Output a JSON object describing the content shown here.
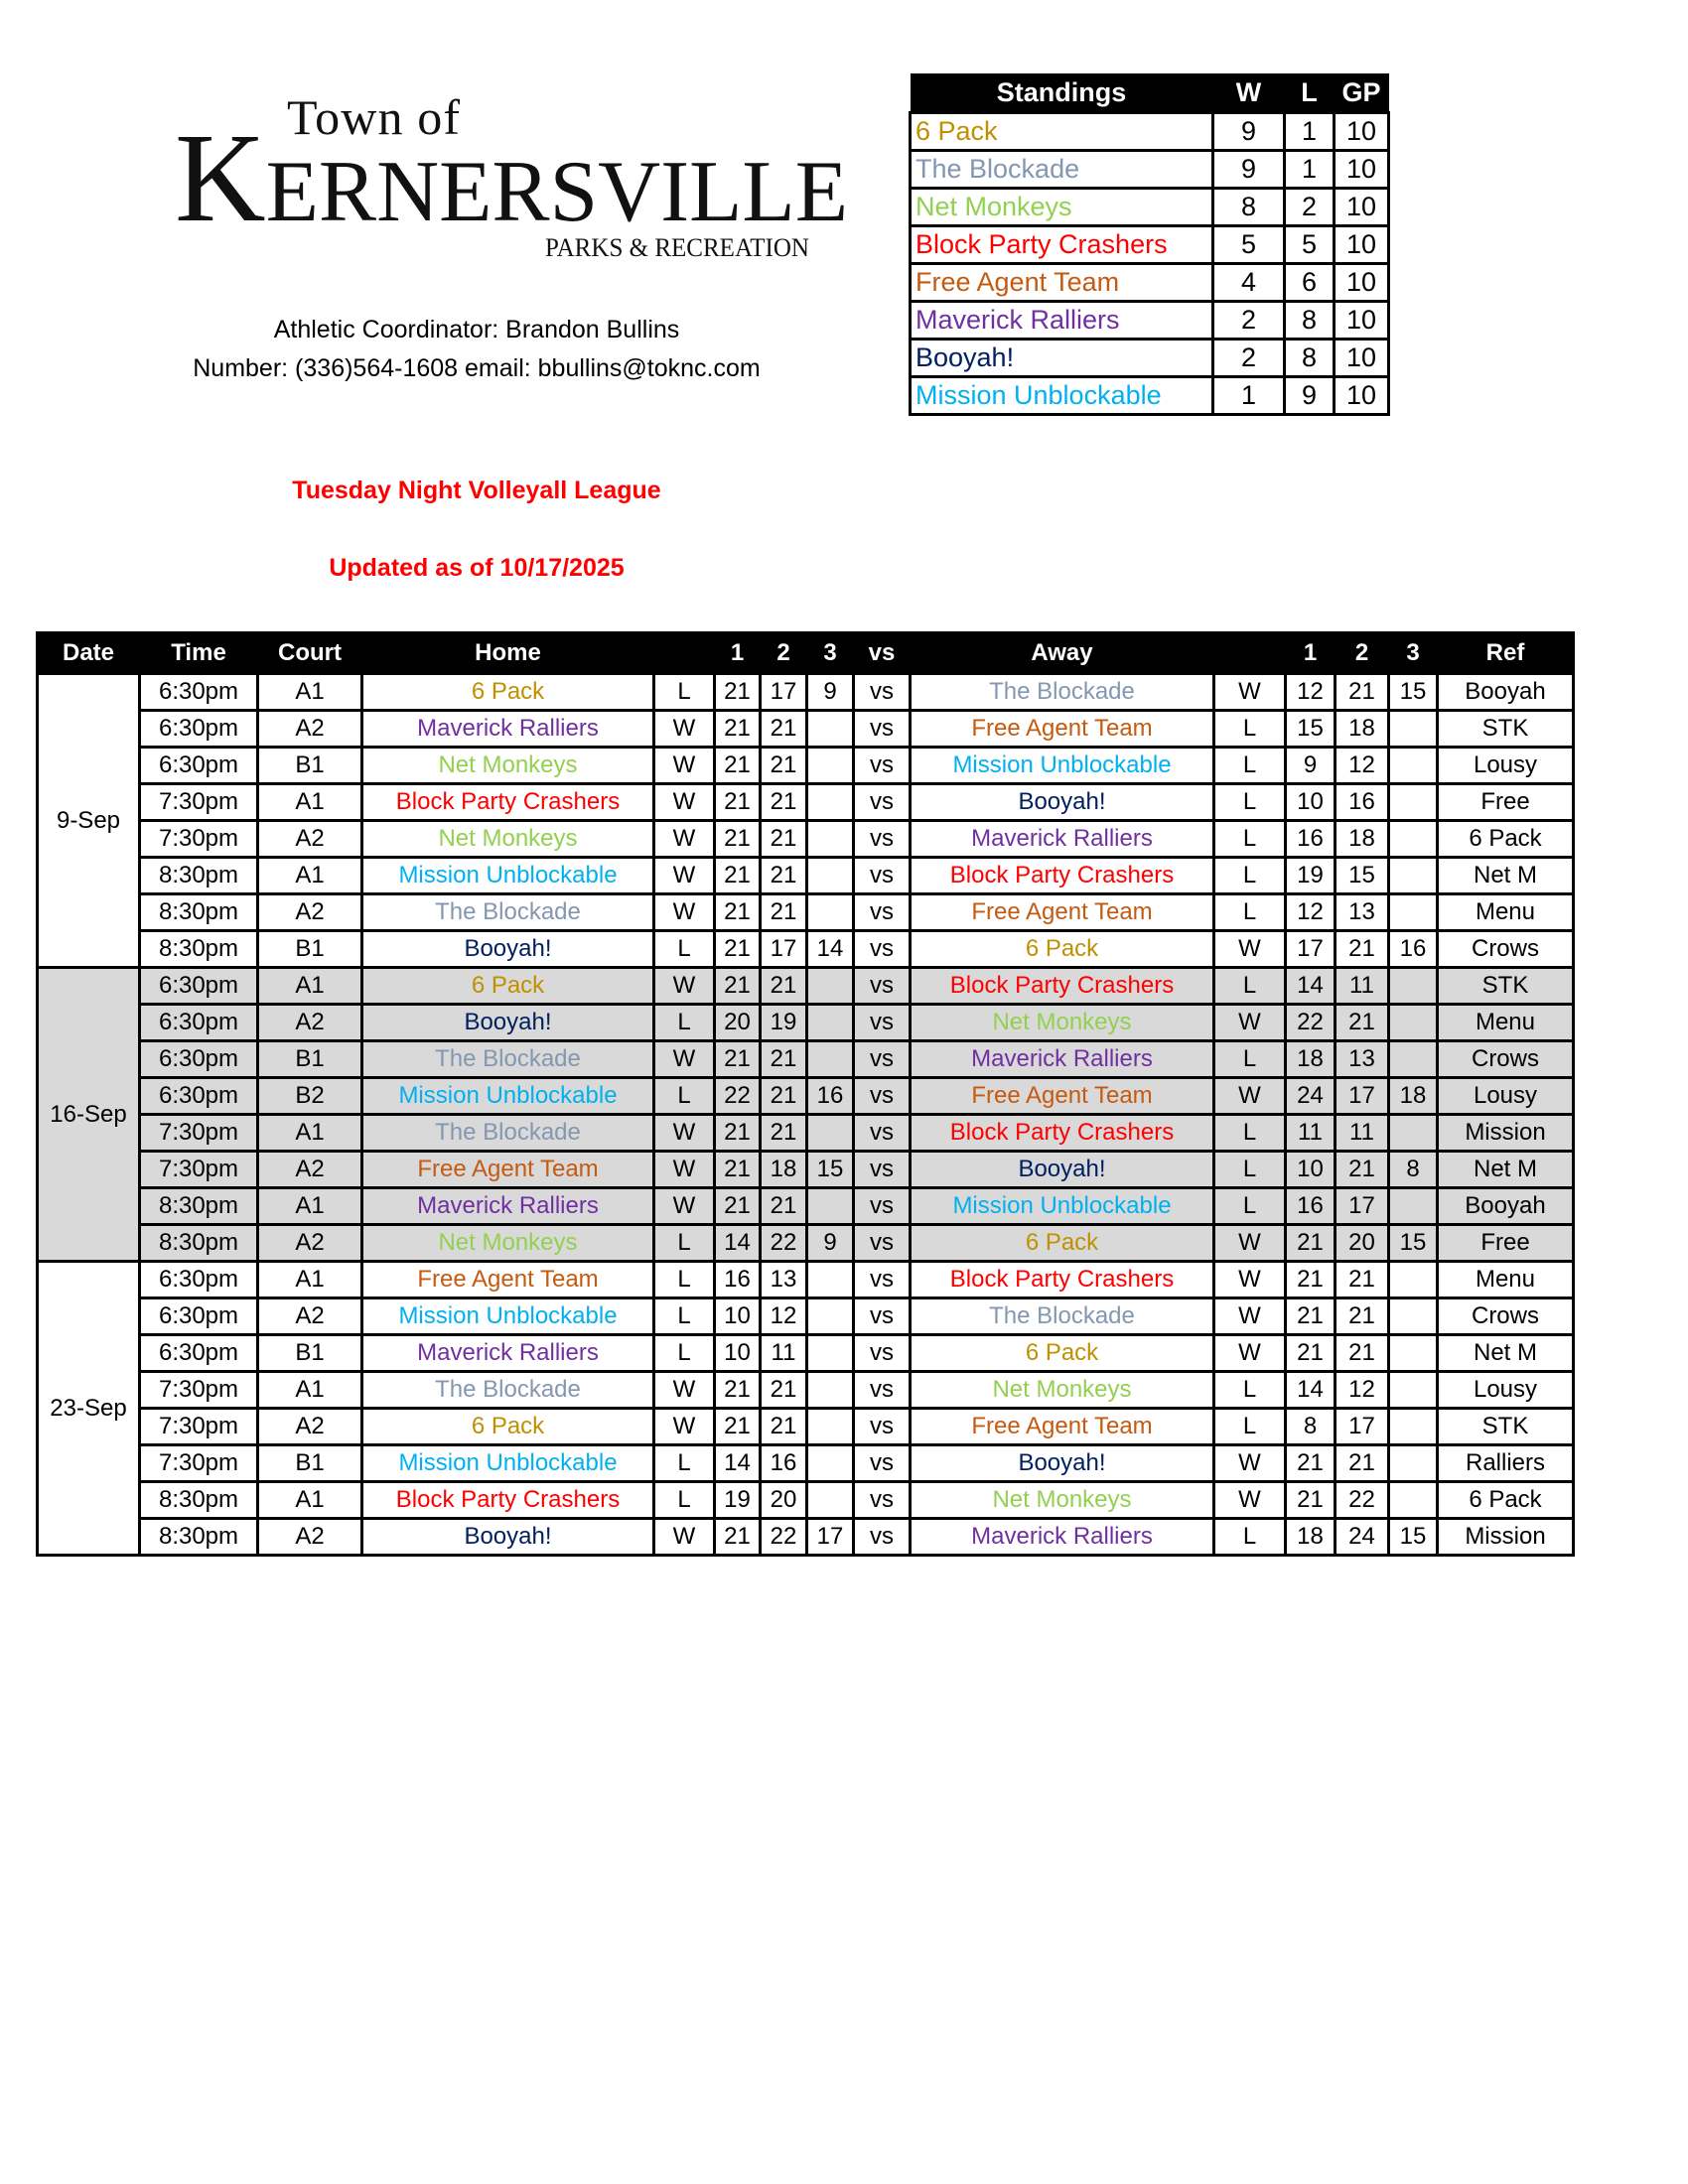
{
  "logo": {
    "line1": "Town of",
    "line2": "KERNERSVILLE",
    "line3": "PARKS & RECREATION"
  },
  "contact": {
    "coordinator": "Athletic Coordinator: Brandon Bullins",
    "number_email": "Number: (336)564-1608 email: bbullins@toknc.com"
  },
  "league_title": "Tuesday Night Volleyall League",
  "updated": "Updated as of 10/17/2025",
  "team_colors": {
    "6 Pack": "#bf9000",
    "The Blockade": "#8497b0",
    "Net Monkeys": "#92d050",
    "Block Party Crashers": "#ff0000",
    "Free Agent Team": "#c55a11",
    "Maverick Ralliers": "#7030a0",
    "Booyah!": "#002060",
    "Mission Unblockable": "#00b0f0"
  },
  "standings": {
    "headers": [
      "Standings",
      "W",
      "L",
      "GP"
    ],
    "rows": [
      {
        "team": "6 Pack",
        "w": "9",
        "l": "1",
        "gp": "10"
      },
      {
        "team": "The Blockade",
        "w": "9",
        "l": "1",
        "gp": "10"
      },
      {
        "team": "Net Monkeys",
        "w": "8",
        "l": "2",
        "gp": "10"
      },
      {
        "team": "Block Party Crashers",
        "w": "5",
        "l": "5",
        "gp": "10"
      },
      {
        "team": "Free Agent Team",
        "w": "4",
        "l": "6",
        "gp": "10"
      },
      {
        "team": "Maverick Ralliers",
        "w": "2",
        "l": "8",
        "gp": "10"
      },
      {
        "team": "Booyah!",
        "w": "2",
        "l": "8",
        "gp": "10"
      },
      {
        "team": "Mission Unblockable",
        "w": "1",
        "l": "9",
        "gp": "10"
      }
    ]
  },
  "schedule": {
    "headers": [
      "Date",
      "Time",
      "Court",
      "Home",
      "",
      "1",
      "2",
      "3",
      "vs",
      "Away",
      "",
      "1",
      "2",
      "3",
      "Ref"
    ],
    "groups": [
      {
        "date": "9-Sep",
        "games": [
          [
            "6:30pm",
            "A1",
            "6 Pack",
            "L",
            "21",
            "17",
            "9",
            "vs",
            "The Blockade",
            "W",
            "12",
            "21",
            "15",
            "Booyah"
          ],
          [
            "6:30pm",
            "A2",
            "Maverick Ralliers",
            "W",
            "21",
            "21",
            "",
            "vs",
            "Free Agent Team",
            "L",
            "15",
            "18",
            "",
            "STK"
          ],
          [
            "6:30pm",
            "B1",
            "Net Monkeys",
            "W",
            "21",
            "21",
            "",
            "vs",
            "Mission Unblockable",
            "L",
            "9",
            "12",
            "",
            "Lousy"
          ],
          [
            "7:30pm",
            "A1",
            "Block Party Crashers",
            "W",
            "21",
            "21",
            "",
            "vs",
            "Booyah!",
            "L",
            "10",
            "16",
            "",
            "Free"
          ],
          [
            "7:30pm",
            "A2",
            "Net Monkeys",
            "W",
            "21",
            "21",
            "",
            "vs",
            "Maverick Ralliers",
            "L",
            "16",
            "18",
            "",
            "6 Pack"
          ],
          [
            "8:30pm",
            "A1",
            "Mission Unblockable",
            "W",
            "21",
            "21",
            "",
            "vs",
            "Block Party Crashers",
            "L",
            "19",
            "15",
            "",
            "Net M"
          ],
          [
            "8:30pm",
            "A2",
            "The Blockade",
            "W",
            "21",
            "21",
            "",
            "vs",
            "Free Agent Team",
            "L",
            "12",
            "13",
            "",
            "Menu"
          ],
          [
            "8:30pm",
            "B1",
            "Booyah!",
            "L",
            "21",
            "17",
            "14",
            "vs",
            "6 Pack",
            "W",
            "17",
            "21",
            "16",
            "Crows"
          ]
        ]
      },
      {
        "date": "16-Sep",
        "games": [
          [
            "6:30pm",
            "A1",
            "6 Pack",
            "W",
            "21",
            "21",
            "",
            "vs",
            "Block Party Crashers",
            "L",
            "14",
            "11",
            "",
            "STK"
          ],
          [
            "6:30pm",
            "A2",
            "Booyah!",
            "L",
            "20",
            "19",
            "",
            "vs",
            "Net Monkeys",
            "W",
            "22",
            "21",
            "",
            "Menu"
          ],
          [
            "6:30pm",
            "B1",
            "The Blockade",
            "W",
            "21",
            "21",
            "",
            "vs",
            "Maverick Ralliers",
            "L",
            "18",
            "13",
            "",
            "Crows"
          ],
          [
            "6:30pm",
            "B2",
            "Mission Unblockable",
            "L",
            "22",
            "21",
            "16",
            "vs",
            "Free Agent Team",
            "W",
            "24",
            "17",
            "18",
            "Lousy"
          ],
          [
            "7:30pm",
            "A1",
            "The Blockade",
            "W",
            "21",
            "21",
            "",
            "vs",
            "Block Party Crashers",
            "L",
            "11",
            "11",
            "",
            "Mission"
          ],
          [
            "7:30pm",
            "A2",
            "Free Agent Team",
            "W",
            "21",
            "18",
            "15",
            "vs",
            "Booyah!",
            "L",
            "10",
            "21",
            "8",
            "Net M"
          ],
          [
            "8:30pm",
            "A1",
            "Maverick Ralliers",
            "W",
            "21",
            "21",
            "",
            "vs",
            "Mission Unblockable",
            "L",
            "16",
            "17",
            "",
            "Booyah"
          ],
          [
            "8:30pm",
            "A2",
            "Net Monkeys",
            "L",
            "14",
            "22",
            "9",
            "vs",
            "6 Pack",
            "W",
            "21",
            "20",
            "15",
            "Free"
          ]
        ]
      },
      {
        "date": "23-Sep",
        "games": [
          [
            "6:30pm",
            "A1",
            "Free Agent Team",
            "L",
            "16",
            "13",
            "",
            "vs",
            "Block Party Crashers",
            "W",
            "21",
            "21",
            "",
            "Menu"
          ],
          [
            "6:30pm",
            "A2",
            "Mission Unblockable",
            "L",
            "10",
            "12",
            "",
            "vs",
            "The Blockade",
            "W",
            "21",
            "21",
            "",
            "Crows"
          ],
          [
            "6:30pm",
            "B1",
            "Maverick Ralliers",
            "L",
            "10",
            "11",
            "",
            "vs",
            "6 Pack",
            "W",
            "21",
            "21",
            "",
            "Net M"
          ],
          [
            "7:30pm",
            "A1",
            "The Blockade",
            "W",
            "21",
            "21",
            "",
            "vs",
            "Net Monkeys",
            "L",
            "14",
            "12",
            "",
            "Lousy"
          ],
          [
            "7:30pm",
            "A2",
            "6 Pack",
            "W",
            "21",
            "21",
            "",
            "vs",
            "Free Agent Team",
            "L",
            "8",
            "17",
            "",
            "STK"
          ],
          [
            "7:30pm",
            "B1",
            "Mission Unblockable",
            "L",
            "14",
            "16",
            "",
            "vs",
            "Booyah!",
            "W",
            "21",
            "21",
            "",
            "Ralliers"
          ],
          [
            "8:30pm",
            "A1",
            "Block Party Crashers",
            "L",
            "19",
            "20",
            "",
            "vs",
            "Net Monkeys",
            "W",
            "21",
            "22",
            "",
            "6 Pack"
          ],
          [
            "8:30pm",
            "A2",
            "Booyah!",
            "W",
            "21",
            "22",
            "17",
            "vs",
            "Maverick Ralliers",
            "L",
            "18",
            "24",
            "15",
            "Mission"
          ]
        ]
      }
    ]
  }
}
